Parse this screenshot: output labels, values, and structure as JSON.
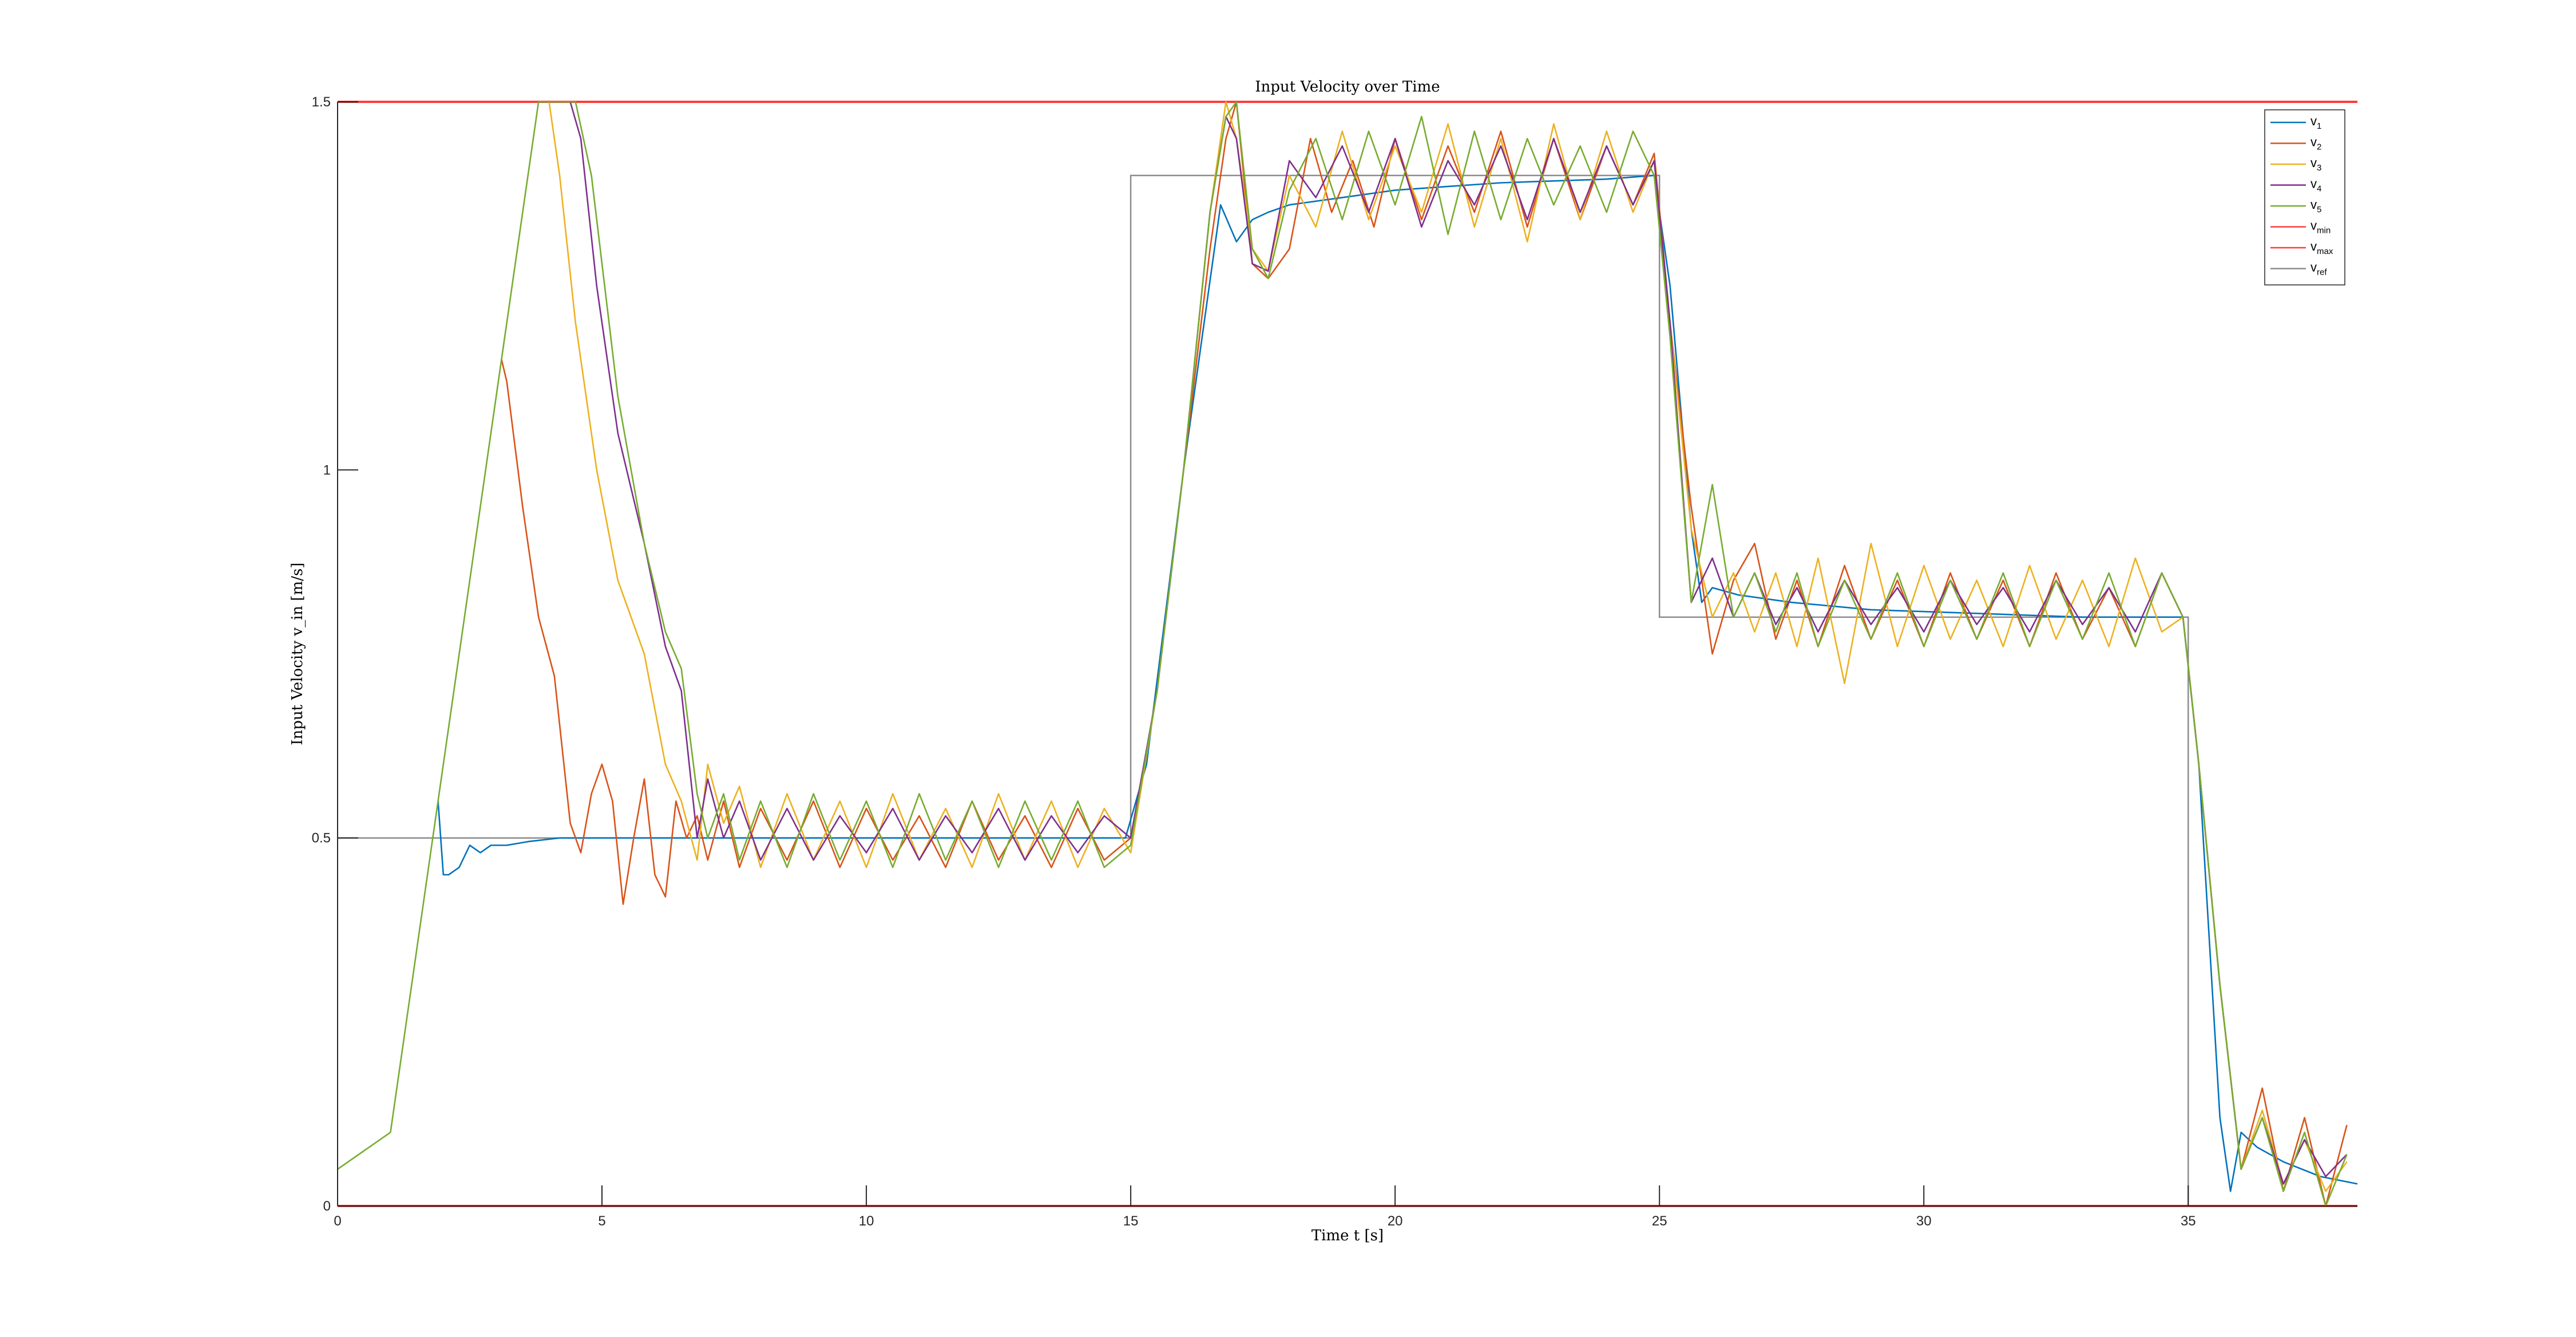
{
  "chart_data": {
    "type": "line",
    "title": "Input Velocity over Time",
    "xlabel": "Time t [s]",
    "ylabel": "Input Velocity v_in [m/s]",
    "xlim": [
      0,
      38.2
    ],
    "ylim": [
      0,
      1.5
    ],
    "xticks": [
      0,
      5,
      10,
      15,
      20,
      25,
      30,
      35
    ],
    "xtick_labels": [
      "0",
      "5",
      "10",
      "15",
      "20",
      "25",
      "30",
      "35"
    ],
    "yticks": [
      0,
      0.5,
      1,
      1.5
    ],
    "ytick_labels": [
      "0",
      "0.5",
      "1",
      "1.5"
    ],
    "grid": false,
    "legend_position": "top-right",
    "reference_lines": [
      {
        "name": "v_min",
        "value": 0,
        "color": "#ff3b3b"
      },
      {
        "name": "v_max",
        "value": 1.5,
        "color": "#ff3b3b"
      }
    ],
    "reference_signal": {
      "name": "v_ref",
      "color": "#8c8c8c",
      "x": [
        0,
        15,
        15,
        25,
        25,
        35,
        35,
        38.2
      ],
      "y": [
        0.5,
        0.5,
        1.4,
        1.4,
        0.8,
        0.8,
        0.0,
        0.0
      ]
    },
    "series": [
      {
        "name": "v_1",
        "color": "#0072bd",
        "x": [
          1.9,
          2.0,
          2.1,
          2.3,
          2.5,
          2.7,
          2.9,
          3.2,
          3.6,
          4.2,
          5.0,
          6.0,
          7.0,
          8.0,
          10.0,
          12.0,
          14.0,
          14.9,
          15.3,
          16.0,
          16.7,
          17.0,
          17.3,
          17.6,
          18.0,
          19.0,
          20.0,
          22.0,
          24.0,
          24.9,
          25.2,
          25.6,
          25.8,
          26.0,
          26.5,
          27.5,
          29.0,
          31.0,
          33.0,
          34.9,
          35.2,
          35.6,
          35.8,
          36.0,
          36.3,
          36.8,
          37.5,
          38.2
        ],
        "y": [
          0.55,
          0.45,
          0.45,
          0.46,
          0.49,
          0.48,
          0.49,
          0.49,
          0.495,
          0.5,
          0.5,
          0.5,
          0.5,
          0.5,
          0.5,
          0.5,
          0.5,
          0.5,
          0.6,
          1.0,
          1.36,
          1.31,
          1.34,
          1.35,
          1.36,
          1.37,
          1.38,
          1.39,
          1.395,
          1.4,
          1.25,
          0.92,
          0.82,
          0.84,
          0.83,
          0.82,
          0.81,
          0.805,
          0.8,
          0.8,
          0.6,
          0.12,
          0.02,
          0.1,
          0.08,
          0.06,
          0.04,
          0.03
        ]
      },
      {
        "name": "v_2",
        "color": "#d95319",
        "x": [
          3.1,
          3.2,
          3.5,
          3.8,
          4.1,
          4.4,
          4.6,
          4.8,
          5.0,
          5.2,
          5.4,
          5.6,
          5.8,
          6.0,
          6.2,
          6.4,
          6.6,
          6.8,
          7.0,
          7.3,
          7.6,
          8.0,
          8.5,
          9.0,
          9.5,
          10.0,
          10.5,
          11.0,
          11.5,
          12.0,
          12.5,
          13.0,
          13.5,
          14.0,
          14.5,
          15.0,
          15.5,
          16.0,
          16.5,
          16.8,
          17.0,
          17.3,
          17.6,
          18.0,
          18.4,
          18.8,
          19.2,
          19.6,
          20.0,
          20.5,
          21.0,
          21.5,
          22.0,
          22.5,
          23.0,
          23.5,
          24.0,
          24.5,
          24.9,
          25.2,
          25.6,
          26.0,
          26.4,
          26.8,
          27.2,
          27.6,
          28.0,
          28.5,
          29.0,
          29.5,
          30.0,
          30.5,
          31.0,
          31.5,
          32.0,
          32.5,
          33.0,
          33.5,
          34.0,
          34.5,
          34.9,
          35.2,
          35.6,
          36.0,
          36.4,
          36.8,
          37.2,
          37.6,
          38.0
        ],
        "y": [
          1.15,
          1.12,
          0.95,
          0.8,
          0.72,
          0.52,
          0.48,
          0.56,
          0.6,
          0.55,
          0.41,
          0.5,
          0.58,
          0.45,
          0.42,
          0.55,
          0.5,
          0.53,
          0.47,
          0.55,
          0.46,
          0.54,
          0.47,
          0.55,
          0.46,
          0.54,
          0.47,
          0.53,
          0.46,
          0.55,
          0.47,
          0.53,
          0.46,
          0.54,
          0.47,
          0.5,
          0.7,
          1.0,
          1.3,
          1.45,
          1.5,
          1.28,
          1.26,
          1.3,
          1.45,
          1.35,
          1.42,
          1.33,
          1.45,
          1.34,
          1.44,
          1.35,
          1.46,
          1.33,
          1.45,
          1.34,
          1.44,
          1.36,
          1.43,
          1.2,
          0.95,
          0.75,
          0.85,
          0.9,
          0.77,
          0.85,
          0.76,
          0.87,
          0.77,
          0.85,
          0.76,
          0.86,
          0.77,
          0.85,
          0.76,
          0.86,
          0.77,
          0.84,
          0.76,
          0.86,
          0.8,
          0.6,
          0.3,
          0.05,
          0.16,
          0.02,
          0.12,
          0.0,
          0.11
        ]
      },
      {
        "name": "v_3",
        "color": "#edb120",
        "x": [
          4.0,
          4.2,
          4.5,
          4.9,
          5.3,
          5.8,
          6.2,
          6.5,
          6.8,
          7.0,
          7.3,
          7.6,
          8.0,
          8.5,
          9.0,
          9.5,
          10.0,
          10.5,
          11.0,
          11.5,
          12.0,
          12.5,
          13.0,
          13.5,
          14.0,
          14.5,
          15.0,
          15.5,
          16.0,
          16.5,
          16.8,
          17.0,
          17.3,
          17.6,
          18.0,
          18.5,
          19.0,
          19.5,
          20.0,
          20.5,
          21.0,
          21.5,
          22.0,
          22.5,
          23.0,
          23.5,
          24.0,
          24.5,
          24.9,
          25.2,
          25.6,
          26.0,
          26.4,
          26.8,
          27.2,
          27.6,
          28.0,
          28.5,
          29.0,
          29.5,
          30.0,
          30.5,
          31.0,
          31.5,
          32.0,
          32.5,
          33.0,
          33.5,
          34.0,
          34.5,
          34.9,
          35.2,
          35.6,
          36.0,
          36.4,
          36.8,
          37.2,
          37.6,
          38.0
        ],
        "y": [
          1.5,
          1.4,
          1.2,
          1.0,
          0.85,
          0.75,
          0.6,
          0.55,
          0.47,
          0.6,
          0.52,
          0.57,
          0.46,
          0.56,
          0.47,
          0.55,
          0.46,
          0.56,
          0.47,
          0.54,
          0.46,
          0.56,
          0.47,
          0.55,
          0.46,
          0.54,
          0.48,
          0.7,
          1.0,
          1.35,
          1.5,
          1.45,
          1.3,
          1.27,
          1.4,
          1.33,
          1.46,
          1.34,
          1.44,
          1.35,
          1.47,
          1.33,
          1.45,
          1.31,
          1.47,
          1.34,
          1.46,
          1.35,
          1.42,
          1.2,
          0.92,
          0.8,
          0.86,
          0.78,
          0.86,
          0.76,
          0.88,
          0.71,
          0.9,
          0.76,
          0.87,
          0.77,
          0.85,
          0.76,
          0.87,
          0.77,
          0.85,
          0.76,
          0.88,
          0.78,
          0.8,
          0.6,
          0.3,
          0.05,
          0.13,
          0.03,
          0.09,
          0.02,
          0.06
        ]
      },
      {
        "name": "v_4",
        "color": "#7e2f8e",
        "x": [
          4.4,
          4.6,
          4.9,
          5.3,
          5.8,
          6.2,
          6.5,
          6.8,
          7.0,
          7.3,
          7.6,
          8.0,
          8.5,
          9.0,
          9.5,
          10.0,
          10.5,
          11.0,
          11.5,
          12.0,
          12.5,
          13.0,
          13.5,
          14.0,
          14.5,
          15.0,
          15.5,
          16.0,
          16.5,
          16.8,
          17.0,
          17.3,
          17.6,
          18.0,
          18.5,
          19.0,
          19.5,
          20.0,
          20.5,
          21.0,
          21.5,
          22.0,
          22.5,
          23.0,
          23.5,
          24.0,
          24.5,
          24.9,
          25.2,
          25.6,
          26.0,
          26.4,
          26.8,
          27.2,
          27.6,
          28.0,
          28.5,
          29.0,
          29.5,
          30.0,
          30.5,
          31.0,
          31.5,
          32.0,
          32.5,
          33.0,
          33.5,
          34.0,
          34.5,
          34.9,
          35.2,
          35.6,
          36.0,
          36.4,
          36.8,
          37.2,
          37.6,
          38.0
        ],
        "y": [
          1.5,
          1.45,
          1.25,
          1.05,
          0.9,
          0.76,
          0.7,
          0.5,
          0.58,
          0.5,
          0.55,
          0.47,
          0.54,
          0.47,
          0.53,
          0.48,
          0.54,
          0.47,
          0.53,
          0.48,
          0.54,
          0.47,
          0.53,
          0.48,
          0.53,
          0.5,
          0.7,
          1.0,
          1.35,
          1.48,
          1.45,
          1.28,
          1.27,
          1.42,
          1.37,
          1.44,
          1.35,
          1.45,
          1.33,
          1.42,
          1.36,
          1.44,
          1.34,
          1.45,
          1.35,
          1.44,
          1.36,
          1.42,
          1.2,
          0.82,
          0.88,
          0.8,
          0.86,
          0.79,
          0.84,
          0.78,
          0.85,
          0.79,
          0.84,
          0.78,
          0.85,
          0.79,
          0.84,
          0.78,
          0.85,
          0.79,
          0.84,
          0.78,
          0.86,
          0.8,
          0.6,
          0.3,
          0.05,
          0.12,
          0.03,
          0.09,
          0.04,
          0.07
        ]
      },
      {
        "name": "v_5",
        "color": "#77ac30",
        "x": [
          0.0,
          1.0,
          2.0,
          3.0,
          3.8,
          4.5,
          4.8,
          5.3,
          5.8,
          6.2,
          6.5,
          6.8,
          7.0,
          7.3,
          7.6,
          8.0,
          8.5,
          9.0,
          9.5,
          10.0,
          10.5,
          11.0,
          11.5,
          12.0,
          12.5,
          13.0,
          13.5,
          14.0,
          14.5,
          15.0,
          15.5,
          16.0,
          16.5,
          16.8,
          17.0,
          17.3,
          17.6,
          18.0,
          18.5,
          19.0,
          19.5,
          20.0,
          20.5,
          21.0,
          21.5,
          22.0,
          22.5,
          23.0,
          23.5,
          24.0,
          24.5,
          24.9,
          25.2,
          25.6,
          26.0,
          26.4,
          26.8,
          27.2,
          27.6,
          28.0,
          28.5,
          29.0,
          29.5,
          30.0,
          30.5,
          31.0,
          31.5,
          32.0,
          32.5,
          33.0,
          33.5,
          34.0,
          34.5,
          34.9,
          35.2,
          35.6,
          36.0,
          36.4,
          36.8,
          37.2,
          37.6,
          38.0
        ],
        "y": [
          0.05,
          0.1,
          0.6,
          1.1,
          1.5,
          1.5,
          1.4,
          1.1,
          0.9,
          0.78,
          0.73,
          0.56,
          0.5,
          0.56,
          0.47,
          0.55,
          0.46,
          0.56,
          0.47,
          0.55,
          0.46,
          0.56,
          0.47,
          0.55,
          0.46,
          0.55,
          0.47,
          0.55,
          0.46,
          0.49,
          0.7,
          1.0,
          1.35,
          1.48,
          1.5,
          1.3,
          1.26,
          1.38,
          1.45,
          1.34,
          1.46,
          1.36,
          1.48,
          1.32,
          1.46,
          1.34,
          1.45,
          1.36,
          1.44,
          1.35,
          1.46,
          1.4,
          1.18,
          0.82,
          0.98,
          0.8,
          0.86,
          0.78,
          0.86,
          0.76,
          0.85,
          0.77,
          0.86,
          0.76,
          0.85,
          0.77,
          0.86,
          0.76,
          0.85,
          0.77,
          0.86,
          0.76,
          0.86,
          0.8,
          0.6,
          0.3,
          0.05,
          0.12,
          0.02,
          0.1,
          0.0,
          0.07
        ]
      }
    ],
    "legend": [
      {
        "label": "v_1",
        "base": "v",
        "sub": "1",
        "color": "#0072bd"
      },
      {
        "label": "v_2",
        "base": "v",
        "sub": "2",
        "color": "#d95319"
      },
      {
        "label": "v_3",
        "base": "v",
        "sub": "3",
        "color": "#edb120"
      },
      {
        "label": "v_4",
        "base": "v",
        "sub": "4",
        "color": "#7e2f8e"
      },
      {
        "label": "v_5",
        "base": "v",
        "sub": "5",
        "color": "#77ac30"
      },
      {
        "label": "v_min",
        "base": "v",
        "sub": "min",
        "color": "#ff3b3b"
      },
      {
        "label": "v_max",
        "base": "v",
        "sub": "max",
        "color": "#ff3b3b"
      },
      {
        "label": "v_ref",
        "base": "v",
        "sub": "ref",
        "color": "#8c8c8c"
      }
    ]
  }
}
